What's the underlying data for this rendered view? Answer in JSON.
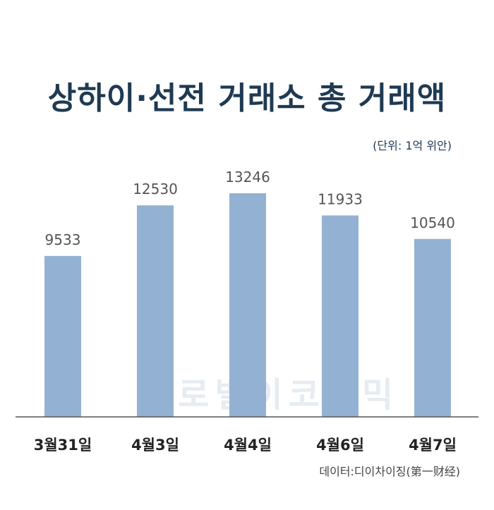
{
  "title": "상하이·선전 거래소 총 거래액",
  "unit_label": "(단위: 1억 위안)",
  "source": "데이터:디이차이징(第一财经)",
  "watermark": "글로벌이코노믹",
  "colors": {
    "bar": "#93b2d3",
    "title": "#1f3a52",
    "axis": "#555555",
    "label": "#555555"
  },
  "chart_data": {
    "type": "bar",
    "categories": [
      "3월31일",
      "4월3일",
      "4월4일",
      "4월6일",
      "4월7일"
    ],
    "values": [
      9533,
      12530,
      13246,
      11933,
      10540
    ],
    "title": "상하이·선전 거래소 총 거래액",
    "ylabel": "(단위: 1억 위안)",
    "grid": false
  }
}
